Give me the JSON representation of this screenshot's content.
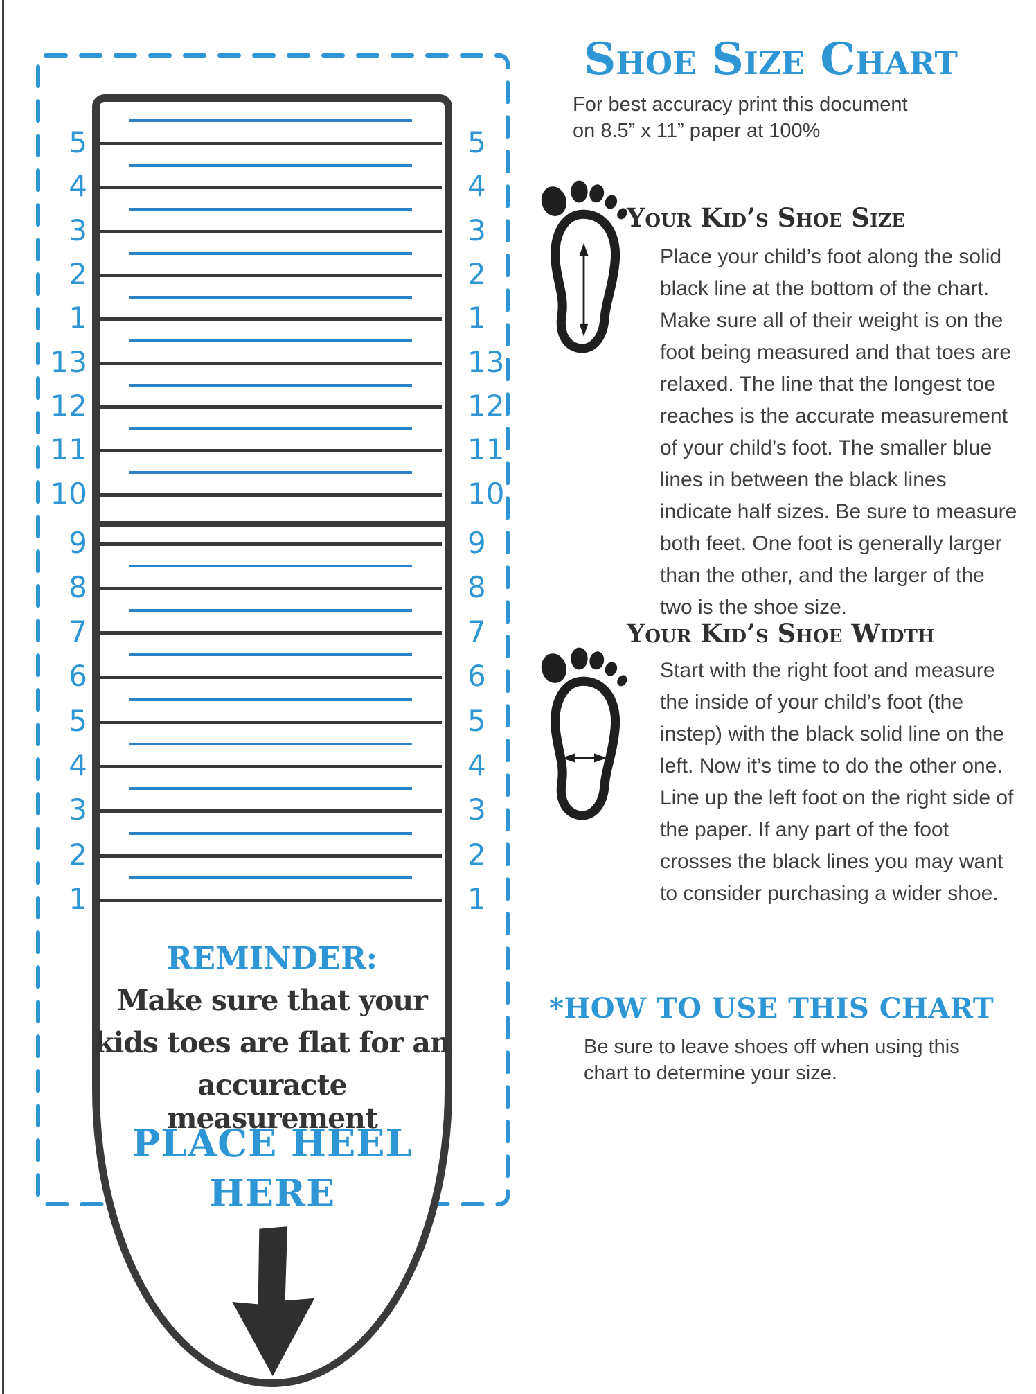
{
  "page": {
    "title": "Shoe Size Chart",
    "subtitle_line1": "For best accuracy print this document",
    "subtitle_line2": "on 8.5” x 11” paper at 100%"
  },
  "ruler": {
    "upper_labels": [
      "5",
      "4",
      "3",
      "2",
      "1",
      "13",
      "12",
      "11",
      "10"
    ],
    "lower_labels": [
      "9",
      "8",
      "7",
      "6",
      "5",
      "4",
      "3",
      "2",
      "1"
    ],
    "reminder_heading": "REMINDER:",
    "reminder_lines": [
      "Make sure that your",
      "kids toes are flat for an",
      "accuracte measurement"
    ],
    "place_heel_line1": "PLACE HEEL",
    "place_heel_line2": "HERE"
  },
  "sections": [
    {
      "heading": "Your Kid’s Shoe Size",
      "body": "Place your child’s foot along the solid black line at the bottom of the chart.  Make sure all of their weight is on the foot being measured and that toes are relaxed. The line that the longest toe reaches is the accurate measurement of your child’s foot. The smaller blue lines in between the black lines indicate half sizes.  Be sure to measure both feet.  One foot is generally larger than the other, and the larger of the two is the shoe size."
    },
    {
      "heading": "Your Kid’s Shoe Width",
      "body": "Start with the right foot and measure the inside of your child’s foot (the instep) with the black solid line on the left.  Now it’s time to do the other one.  Line up the left foot on the right side of the paper.  If any part of the foot crosses the black lines you may want to consider purchasing a wider shoe."
    }
  ],
  "how_to": {
    "heading": "*HOW TO USE THIS CHART",
    "body": "Be sure to leave shoes off when using this chart to determine your size."
  },
  "icons": {
    "foot_length": "foot-length-measure-icon",
    "foot_width": "foot-width-measure-icon",
    "down_arrow": "down-arrow-icon"
  },
  "colors": {
    "accent_blue": "#2e96d4",
    "half_size_line_blue": "#2b82c6",
    "ink": "#3a3a3a"
  }
}
